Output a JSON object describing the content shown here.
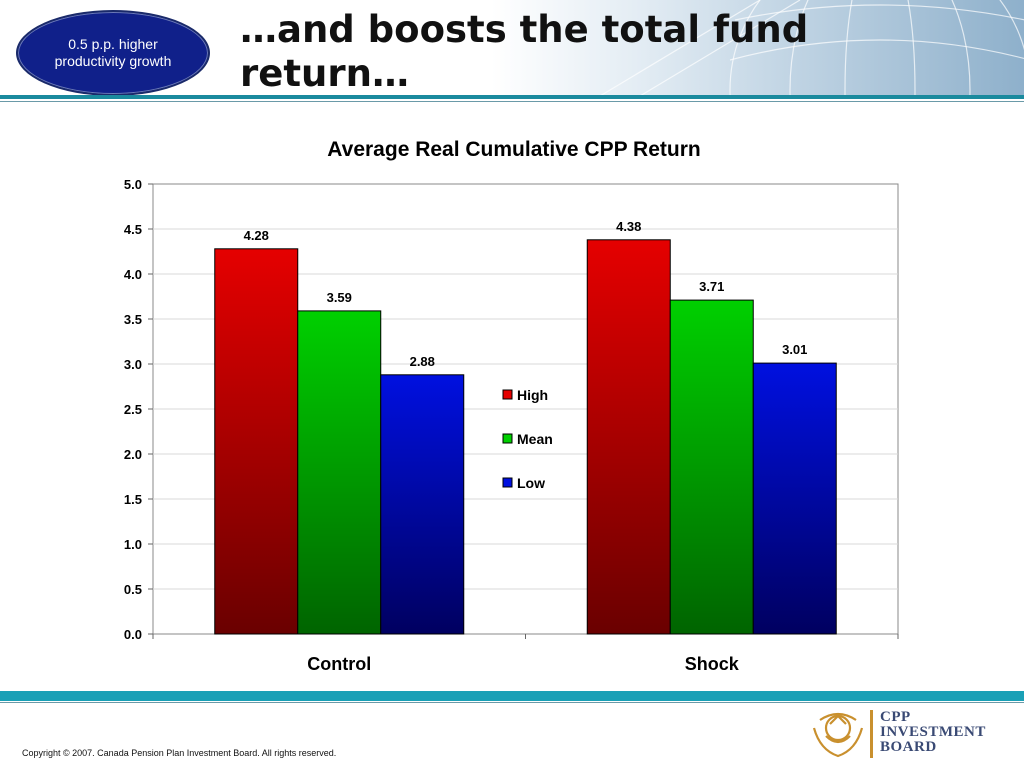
{
  "badge": {
    "text": "0.5 p.p. higher productivity growth"
  },
  "slide": {
    "title": "…and boosts the total fund return…"
  },
  "colors": {
    "high": "#e50000",
    "mean": "#00d000",
    "low": "#0010e0",
    "badge": "#10208a",
    "rule": "#1aa0b6"
  },
  "chart_data": {
    "type": "bar",
    "title": "Average Real Cumulative CPP Return",
    "categories": [
      "Control",
      "Shock"
    ],
    "series": [
      {
        "name": "High",
        "values": [
          4.28,
          4.38
        ],
        "labels": [
          "4.28",
          "4.38"
        ]
      },
      {
        "name": "Mean",
        "values": [
          3.59,
          3.71
        ],
        "labels": [
          "3.59",
          "3.71"
        ]
      },
      {
        "name": "Low",
        "values": [
          2.88,
          3.01
        ],
        "labels": [
          "2.88",
          "3.01"
        ]
      }
    ],
    "ylim": [
      0,
      5
    ],
    "yticks": [
      "0.0",
      "0.5",
      "1.0",
      "1.5",
      "2.0",
      "2.5",
      "3.0",
      "3.5",
      "4.0",
      "4.5",
      "5.0"
    ],
    "grid": true,
    "legend": "center-right"
  },
  "footer": {
    "copyright": "Copyright © 2007. Canada Pension Plan Investment Board. All rights reserved.",
    "logo_line1": "CPP",
    "logo_line2": "INVESTMENT",
    "logo_line3": "BOARD",
    "logo_icon": "maple-leaf-wreath-icon"
  }
}
